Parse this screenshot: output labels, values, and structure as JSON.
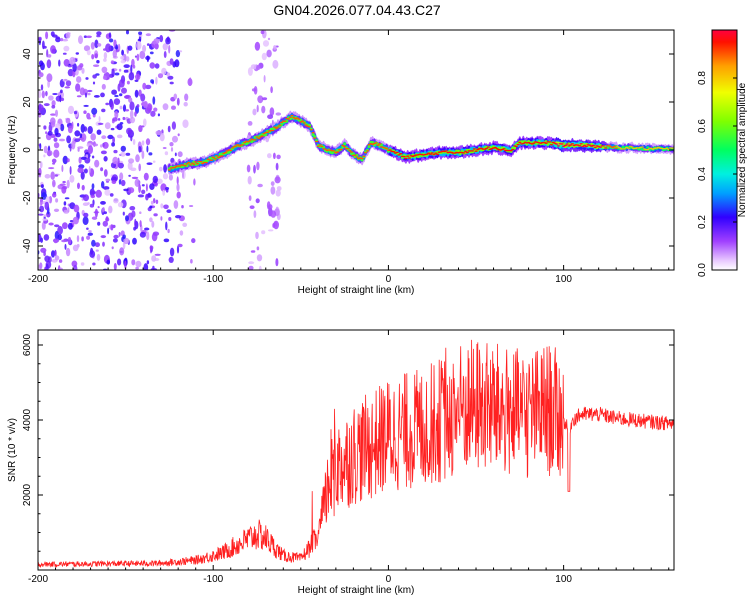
{
  "page_title": "GN04.2026.077.04.43.C27",
  "chart_data": [
    {
      "type": "heatmap",
      "name": "spectrogram",
      "title": "GN04.2026.077.04.43.C27",
      "xlabel": "Height of straight line (km)",
      "ylabel": "Frequency (Hz)",
      "xlim": [
        -200,
        163
      ],
      "ylim": [
        -50,
        50
      ],
      "xticks": [
        "-200",
        "-100",
        "0",
        "100"
      ],
      "yticks": [
        "-40",
        "-20",
        "0",
        "20",
        "40"
      ],
      "colorbar": {
        "label": "Normalized spectral amplitude",
        "range": [
          0,
          1
        ],
        "ticks": [
          "0.0",
          "0.2",
          "0.4",
          "0.6",
          "0.8"
        ]
      },
      "ridge": {
        "x": [
          -125,
          -115,
          -105,
          -95,
          -85,
          -75,
          -65,
          -55,
          -45,
          -40,
          -35,
          -30,
          -25,
          -20,
          -15,
          -10,
          -5,
          0,
          10,
          20,
          30,
          40,
          50,
          60,
          70,
          75,
          80,
          90,
          100,
          110,
          120,
          130,
          140,
          150,
          163
        ],
        "freq": [
          -8,
          -6,
          -5,
          -2,
          2,
          5,
          9,
          14,
          10,
          2,
          0,
          -1,
          2,
          -2,
          -4,
          3,
          2,
          0,
          -3,
          -2,
          -1,
          -1,
          0,
          1,
          0,
          3,
          3,
          3,
          2,
          2,
          1.5,
          1,
          1,
          0.5,
          0.5
        ]
      }
    },
    {
      "type": "line",
      "name": "snr",
      "xlabel": "Height of straight line (km)",
      "ylabel": "SNR (10 * v/v)",
      "xlim": [
        -200,
        163
      ],
      "ylim": [
        0,
        6400
      ],
      "xticks": [
        "-200",
        "-100",
        "0",
        "100"
      ],
      "yticks": [
        "2000",
        "4000",
        "6000"
      ],
      "series_color": "#ff2020",
      "envelope": {
        "x": [
          -200,
          -130,
          -110,
          -95,
          -85,
          -75,
          -70,
          -65,
          -60,
          -50,
          -40,
          -35,
          -30,
          -25,
          -20,
          -10,
          0,
          10,
          20,
          30,
          40,
          50,
          60,
          70,
          80,
          90,
          95,
          100,
          103,
          105,
          110,
          120,
          130,
          140,
          150,
          163
        ],
        "y": [
          150,
          180,
          260,
          450,
          700,
          950,
          850,
          600,
          380,
          300,
          900,
          2100,
          2700,
          2900,
          3100,
          3300,
          3600,
          3700,
          3800,
          4000,
          4300,
          4400,
          4300,
          4200,
          4100,
          4300,
          4200,
          4000,
          3700,
          4000,
          4150,
          4150,
          4050,
          4000,
          3950,
          3900
        ]
      }
    }
  ]
}
